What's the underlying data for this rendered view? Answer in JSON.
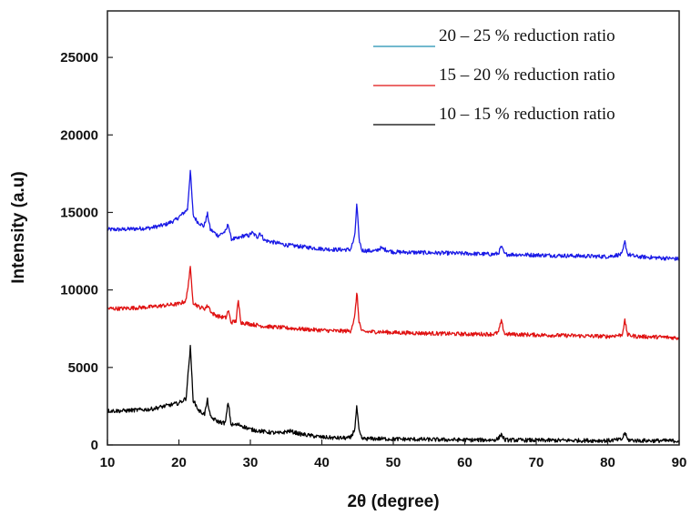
{
  "chart_data": {
    "type": "line",
    "title": "",
    "xlabel": "2θ (degree)",
    "ylabel": "Intensity (a.u)",
    "xlim": [
      10,
      90
    ],
    "ylim": [
      0,
      28000
    ],
    "x_ticks": [
      10,
      20,
      30,
      40,
      50,
      60,
      70,
      80,
      90
    ],
    "y_ticks": [
      0,
      5000,
      10000,
      15000,
      20000,
      25000
    ],
    "grid": false,
    "legend_position": "top-right",
    "series": [
      {
        "name": "20 – 25 % reduction ratio",
        "color": "#1a1ae6",
        "legend_color": "#1f8fb0",
        "x": [
          10,
          12,
          14,
          16,
          18,
          19.5,
          20.5,
          21.2,
          21.6,
          22.0,
          22.6,
          23.5,
          24.0,
          24.4,
          25.5,
          26.6,
          26.9,
          27.3,
          28.2,
          29.0,
          29.8,
          30.2,
          31.0,
          31.3,
          32,
          35,
          38,
          40,
          42,
          44,
          44.6,
          44.9,
          45.2,
          45.6,
          47.5,
          48.2,
          50,
          55,
          60,
          64,
          64.7,
          65.1,
          65.6,
          70,
          75,
          80,
          82,
          82.4,
          82.8,
          84,
          88,
          90
        ],
        "y": [
          13900,
          13900,
          13950,
          14000,
          14200,
          14500,
          14900,
          15200,
          17700,
          14800,
          14400,
          14100,
          14900,
          13900,
          13500,
          13800,
          14300,
          13300,
          13300,
          13500,
          13500,
          13700,
          13400,
          13700,
          13200,
          12900,
          12750,
          12650,
          12600,
          12600,
          13400,
          15600,
          13300,
          12550,
          12500,
          12700,
          12450,
          12400,
          12350,
          12300,
          12350,
          12800,
          12300,
          12250,
          12200,
          12150,
          12300,
          13100,
          12300,
          12150,
          12050,
          12000
        ]
      },
      {
        "name": "15 – 20 % reduction ratio",
        "color": "#e01212",
        "legend_color": "#e01212",
        "x": [
          10,
          12,
          14,
          16,
          18,
          20,
          21.0,
          21.6,
          22.0,
          22.8,
          23.6,
          24.1,
          24.6,
          25.5,
          26.6,
          26.9,
          27.3,
          28.0,
          28.3,
          28.7,
          30,
          32,
          35,
          38,
          40,
          42,
          44,
          44.6,
          44.9,
          45.2,
          45.6,
          48,
          50,
          55,
          60,
          64,
          64.7,
          65.1,
          65.6,
          70,
          75,
          80,
          82,
          82.4,
          82.8,
          84,
          88,
          90
        ],
        "y": [
          8800,
          8800,
          8850,
          8900,
          9000,
          9100,
          9300,
          11400,
          9200,
          8900,
          8800,
          9000,
          8500,
          8300,
          8200,
          8700,
          7900,
          8000,
          9300,
          7900,
          7800,
          7650,
          7550,
          7450,
          7400,
          7350,
          7350,
          8200,
          9900,
          8000,
          7300,
          7300,
          7250,
          7200,
          7150,
          7150,
          7250,
          8000,
          7150,
          7100,
          7050,
          7000,
          7100,
          8000,
          7100,
          7000,
          6950,
          6900
        ]
      },
      {
        "name": "10 – 15 % reduction ratio",
        "color": "#000000",
        "legend_color": "#000000",
        "x": [
          10,
          12,
          14,
          16,
          18,
          20,
          21.0,
          21.6,
          22.0,
          22.8,
          23.6,
          24.0,
          24.4,
          25.5,
          26.5,
          26.9,
          27.3,
          28.5,
          30,
          32,
          34,
          35.5,
          37,
          40,
          42,
          44,
          44.6,
          44.9,
          45.2,
          45.6,
          48,
          50,
          55,
          60,
          64,
          64.7,
          65.1,
          65.6,
          70,
          75,
          80,
          82,
          82.4,
          82.8,
          84,
          88,
          90
        ],
        "y": [
          2200,
          2200,
          2250,
          2300,
          2500,
          2700,
          3000,
          6300,
          2900,
          2200,
          2000,
          2900,
          1800,
          1500,
          1400,
          2800,
          1300,
          1300,
          1000,
          850,
          750,
          900,
          700,
          500,
          450,
          450,
          1000,
          2500,
          900,
          400,
          400,
          380,
          350,
          320,
          320,
          400,
          700,
          320,
          300,
          290,
          280,
          350,
          800,
          330,
          280,
          270,
          260
        ]
      }
    ]
  }
}
